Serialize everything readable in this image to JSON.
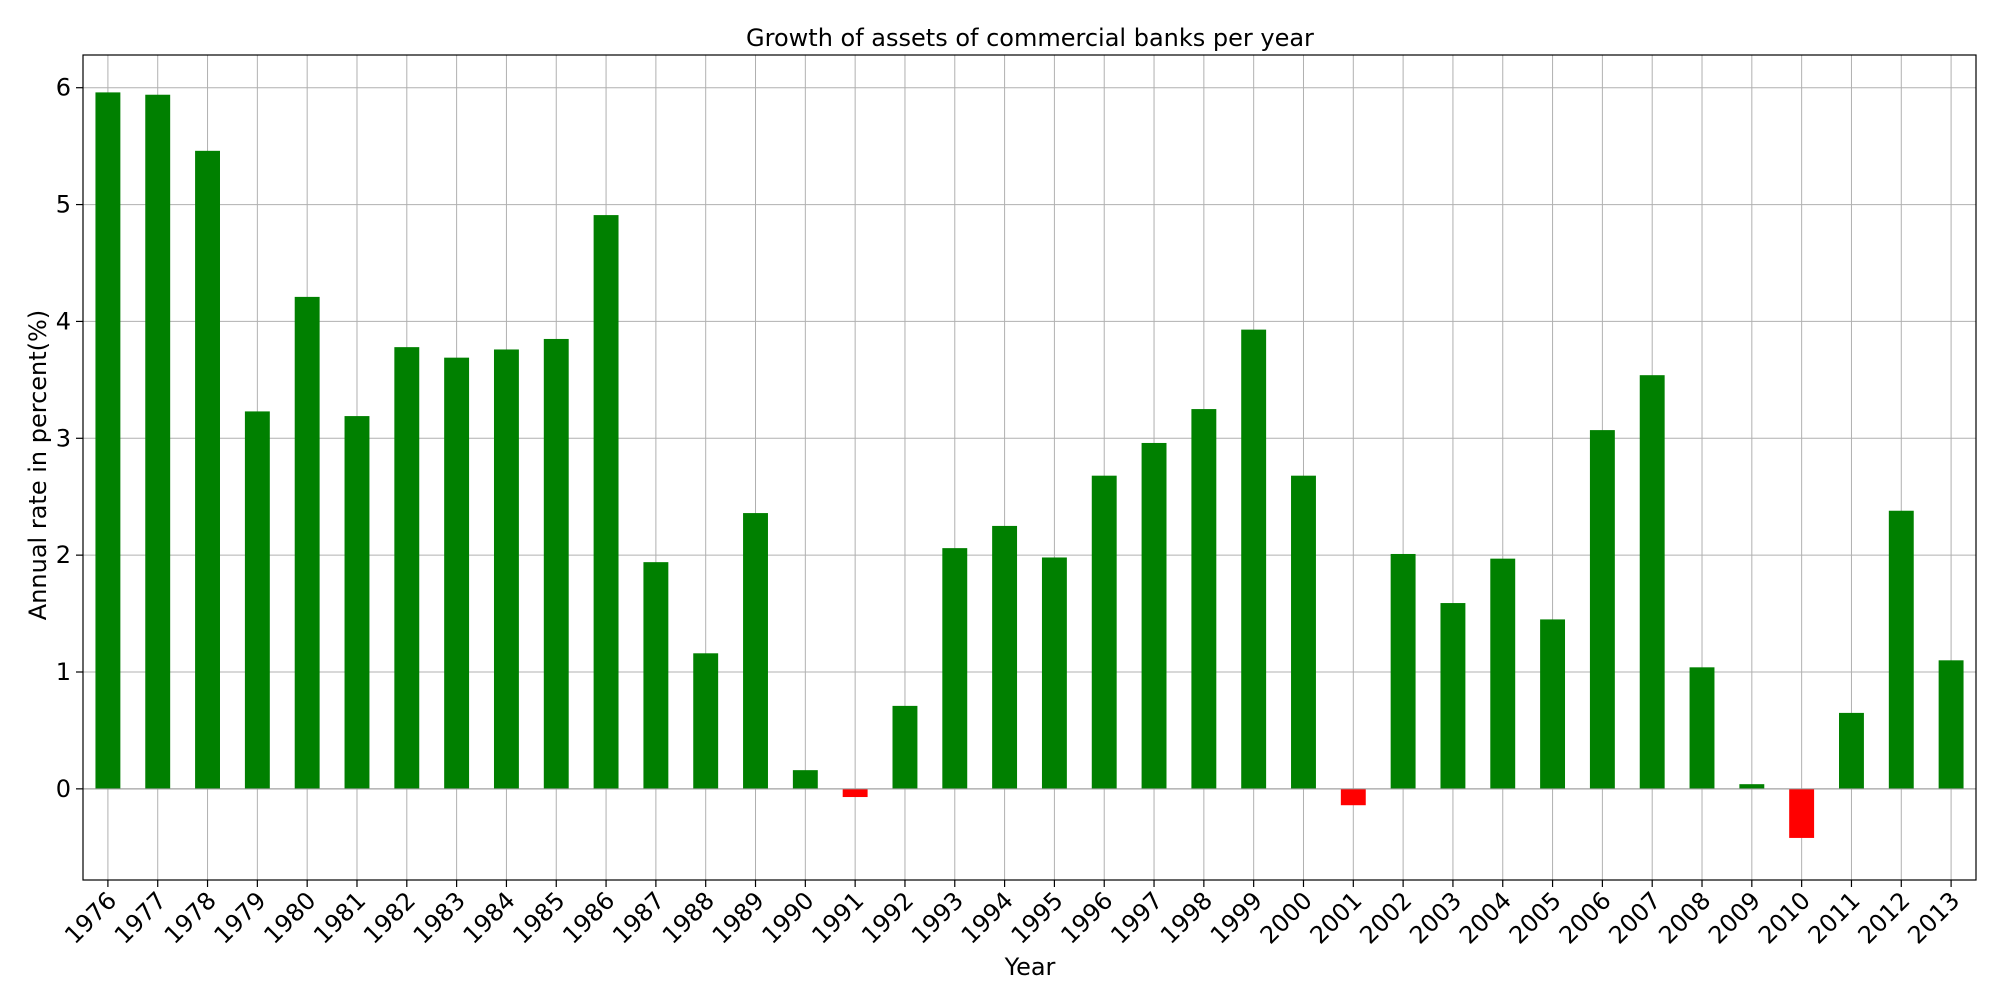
{
  "chart_data": {
    "type": "bar",
    "title": "Growth of assets  of commercial banks per year",
    "xlabel": "Year",
    "ylabel": "Annual rate in percent(%)",
    "categories": [
      "1976",
      "1977",
      "1978",
      "1979",
      "1980",
      "1981",
      "1982",
      "1983",
      "1984",
      "1985",
      "1986",
      "1987",
      "1988",
      "1989",
      "1990",
      "1991",
      "1992",
      "1993",
      "1994",
      "1995",
      "1996",
      "1997",
      "1998",
      "1999",
      "2000",
      "2001",
      "2002",
      "2003",
      "2004",
      "2005",
      "2006",
      "2007",
      "2008",
      "2009",
      "2010",
      "2011",
      "2012",
      "2013"
    ],
    "values": [
      5.96,
      5.94,
      5.46,
      3.23,
      4.21,
      3.19,
      3.78,
      3.69,
      3.76,
      3.85,
      4.91,
      1.94,
      1.16,
      2.36,
      0.16,
      -0.07,
      0.71,
      2.06,
      2.25,
      1.98,
      2.68,
      2.96,
      3.25,
      3.93,
      2.68,
      -0.14,
      2.01,
      1.59,
      1.97,
      1.45,
      3.07,
      3.54,
      1.04,
      0.04,
      -0.42,
      0.65,
      2.38,
      1.1
    ],
    "ylim": [
      -0.78,
      6.28
    ],
    "yticks": [
      0,
      1,
      2,
      3,
      4,
      5,
      6
    ],
    "grid": true,
    "colors": {
      "positive": "#008000",
      "negative": "#ff0000",
      "grid": "#b0b0b0",
      "axes": "#000000"
    }
  }
}
